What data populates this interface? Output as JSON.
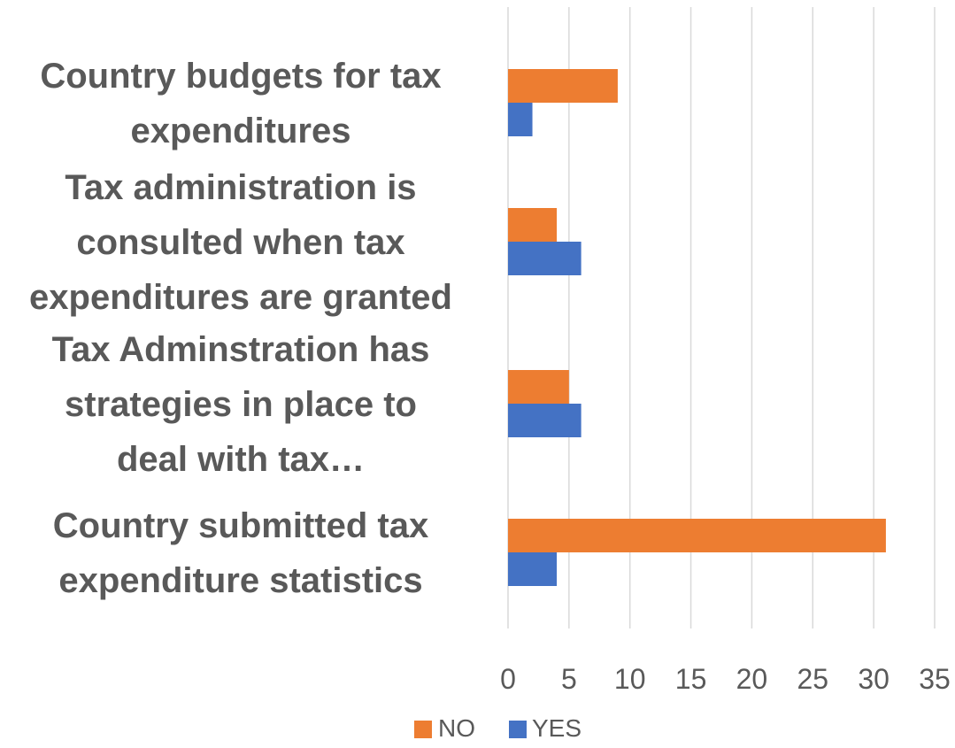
{
  "chart_data": {
    "type": "bar",
    "orientation": "horizontal",
    "categories": [
      [
        "Country budgets for tax",
        "expenditures"
      ],
      [
        "Tax administration is",
        "consulted when tax",
        "expenditures are granted"
      ],
      [
        "Tax Adminstration has",
        "strategies in place to",
        "deal with tax…"
      ],
      [
        "Country submitted tax",
        "expenditure statistics"
      ]
    ],
    "series": [
      {
        "name": "NO",
        "color": "#ed7d31",
        "values": [
          9,
          4,
          5,
          31
        ]
      },
      {
        "name": "YES",
        "color": "#4472c4",
        "values": [
          2,
          6,
          6,
          4
        ]
      }
    ],
    "xlim": [
      0,
      35
    ],
    "xticks": [
      0,
      5,
      10,
      15,
      20,
      25,
      30,
      35
    ],
    "grid": true,
    "legend_position": "bottom",
    "gridline_color": "#d9d9d9",
    "text_color": "#595959"
  }
}
